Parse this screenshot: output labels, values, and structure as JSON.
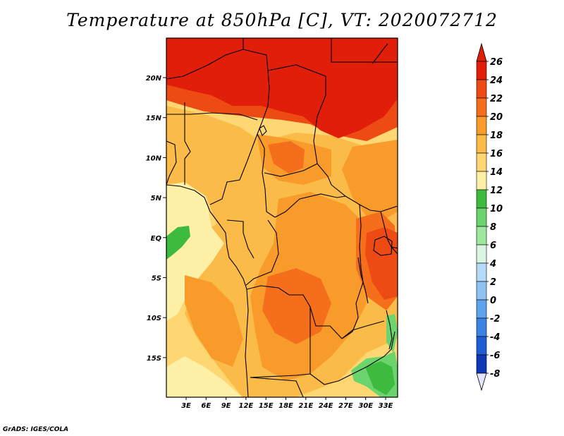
{
  "title": "Temperature at 850hPa [C], VT: 2020072712",
  "credit": "GrADS: IGES/COLA",
  "map": {
    "lon_labels": [
      "3E",
      "6E",
      "9E",
      "12E",
      "15E",
      "18E",
      "21E",
      "24E",
      "27E",
      "30E",
      "33E"
    ],
    "lat_labels": [
      "20N",
      "15N",
      "10N",
      "5N",
      "EQ",
      "5S",
      "10S",
      "15S"
    ]
  },
  "colorbar": {
    "labels": [
      "26",
      "24",
      "22",
      "20",
      "18",
      "16",
      "14",
      "12",
      "10",
      "8",
      "6",
      "4",
      "2",
      "0",
      "-2",
      "-4",
      "-6",
      "-8"
    ],
    "colors": [
      "#e01e0a",
      "#ee4a14",
      "#f56e1c",
      "#f99b2a",
      "#fbbb48",
      "#fed772",
      "#fff0a8",
      "#3ebb3e",
      "#6cd46c",
      "#9ee89e",
      "#d8f6e2",
      "#b4daf8",
      "#8ec4f4",
      "#5ea3ee",
      "#3c82e2",
      "#1e5ed2",
      "#0e38b4",
      "#060a78"
    ],
    "tip_top_color": "#e01e0a",
    "tip_bottom_color": "#e4e4fa"
  }
}
